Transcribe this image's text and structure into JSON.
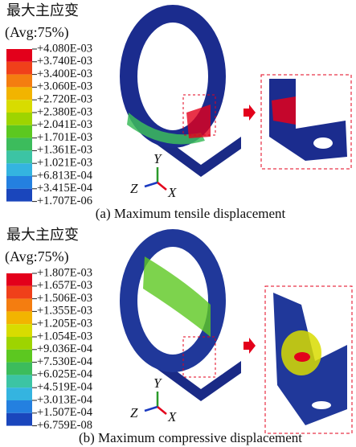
{
  "panels": [
    {
      "title": "最大主应变",
      "avg": "(Avg:75%)",
      "legend": [
        "+4.080E-03",
        "+3.740E-03",
        "+3.400E-03",
        "+3.060E-03",
        "+2.720E-03",
        "+2.380E-03",
        "+2.041E-03",
        "+1.701E-03",
        "+1.361E-03",
        "+1.021E-03",
        "+6.813E-04",
        "+3.415E-04",
        "+1.707E-06"
      ],
      "axes": {
        "y": "Y",
        "z": "Z",
        "x": "X"
      },
      "caption": "(a) Maximum tensile displacement"
    },
    {
      "title": "最大主应变",
      "avg": "(Avg:75%)",
      "legend": [
        "+1.807E-03",
        "+1.657E-03",
        "+1.506E-03",
        "+1.355E-03",
        "+1.205E-03",
        "+1.054E-03",
        "+9.036E-04",
        "+7.530E-04",
        "+6.025E-04",
        "+4.519E-04",
        "+3.013E-04",
        "+1.507E-04",
        "+6.759E-08"
      ],
      "axes": {
        "y": "Y",
        "z": "Z",
        "x": "X"
      },
      "caption": "(b) Maximum compressive displacement"
    }
  ]
}
